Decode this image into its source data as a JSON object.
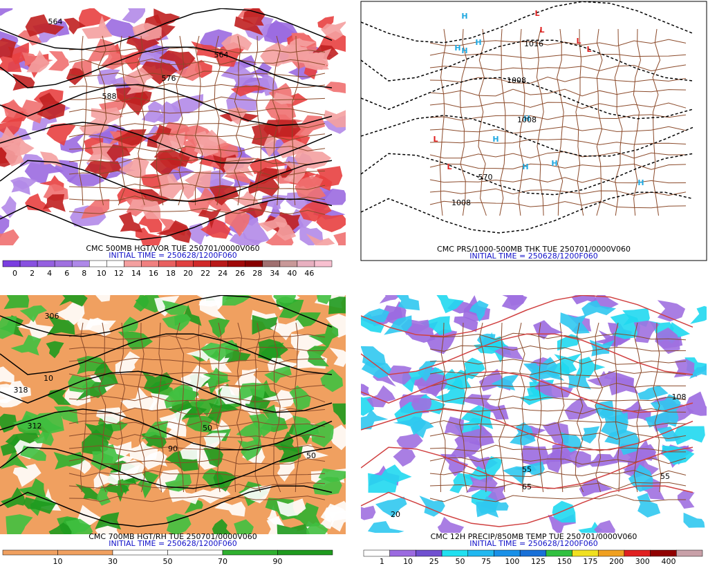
{
  "panels": [
    {
      "caption": "CMC 500MB HGT/VOR TUE 250701/0000V060",
      "initial": "INITIAL TIME = 250628/1200F060",
      "background": "#ffffff",
      "blob_colors": [
        "#9b6ae0",
        "#b28ae8",
        "#e84040",
        "#f07070",
        "#c02020",
        "#f4a0a0"
      ],
      "map_labels": [
        "564",
        "564",
        "576",
        "588"
      ],
      "colorbar": {
        "labels": [
          "0",
          "2",
          "4",
          "6",
          "8",
          "10",
          "12",
          "14",
          "16",
          "18",
          "20",
          "22",
          "24",
          "26",
          "28",
          "34",
          "40",
          "46"
        ],
        "colors": [
          "#7a3ee0",
          "#8850e0",
          "#9560e0",
          "#a070e0",
          "#ae88e8",
          "#ffffff",
          "#ffffff",
          "#f4a0a0",
          "#f08080",
          "#e86060",
          "#e04040",
          "#d02828",
          "#b81818",
          "#a00808",
          "#880000",
          "#a07070",
          "#c89898",
          "#e8b0c0",
          "#f8c0d0"
        ]
      }
    },
    {
      "caption": "CMC PRS/1000-500MB THK TUE 250701/0000V060",
      "initial": "INITIAL TIME = 250628/1200F060",
      "background": "#ffffff",
      "blob_colors": [],
      "map_labels": [
        "H",
        "H",
        "H",
        "H",
        "H",
        "H",
        "H",
        "H",
        "H",
        "L",
        "L",
        "L",
        "L",
        "L",
        "L",
        "1008",
        "1016",
        "1008",
        "570",
        "1008"
      ],
      "colorbar": null
    },
    {
      "caption": "CMC 700MB HGT/RH TUE 250701/0000V060",
      "initial": "INITIAL TIME = 250628/1200F060",
      "background": "#f0a060",
      "blob_colors": [
        "#ffffff",
        "#30b030",
        "#1e9a1e",
        "#ffffff",
        "#40c040"
      ],
      "map_labels": [
        "306",
        "318",
        "312",
        "10",
        "50",
        "90",
        "50"
      ],
      "colorbar": {
        "labels": [
          "10",
          "30",
          "50",
          "70",
          "90"
        ],
        "colors": [
          "#f0a060",
          "#f0a060",
          "#ffffff",
          "#ffffff",
          "#2fb02f",
          "#1f9a1f"
        ]
      }
    },
    {
      "caption": "CMC 12H PRECIP/850MB TEMP TUE 250701/0000V060",
      "initial": "INITIAL TIME = 250628/1200F060",
      "background": "#ffffff",
      "blob_colors": [
        "#9b6ae0",
        "#20d8f0",
        "#a070e0",
        "#30c8f0"
      ],
      "map_labels": [
        "55",
        "65",
        "55",
        "20",
        "108"
      ],
      "colorbar": {
        "labels": [
          "1",
          "10",
          "25",
          "50",
          "75",
          "100",
          "125",
          "150",
          "175",
          "200",
          "300",
          "400"
        ],
        "colors": [
          "#ffffff",
          "#9b6ae0",
          "#7050d0",
          "#20e0f0",
          "#20b8f0",
          "#1890e8",
          "#1870d8",
          "#30c040",
          "#f0e020",
          "#f0a020",
          "#e02020",
          "#900000",
          "#c8a0a8"
        ]
      }
    }
  ]
}
